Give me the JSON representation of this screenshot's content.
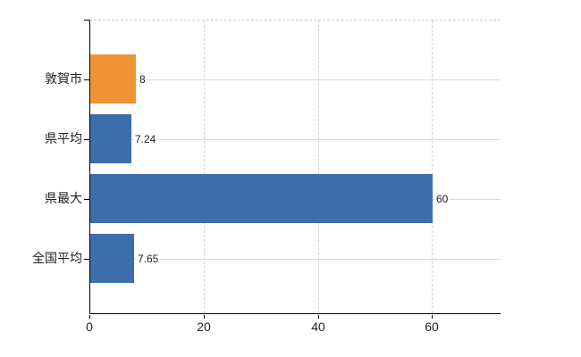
{
  "chart": {
    "background_color": "#ffffff",
    "axis_color": "#000000",
    "horizontal_grid_color": "#d4ddd4",
    "vertical_grid_color": "#d8d2d8",
    "plot_top_border_color": "#c9c9c9",
    "text_color": "#222222"
  },
  "chart_data": {
    "type": "bar",
    "orientation": "horizontal",
    "title": "",
    "xlabel": "",
    "ylabel": "",
    "categories": [
      "敦賀市",
      "県平均",
      "県最大",
      "全国平均"
    ],
    "values": [
      8,
      7.24,
      60,
      7.65
    ],
    "value_labels": [
      "8",
      "7.24",
      "60",
      "7.65"
    ],
    "bar_colors": [
      "#ee9434",
      "#3d6eac",
      "#3d6eac",
      "#3d6eac"
    ],
    "accent_orange": "#ee9434",
    "accent_blue": "#3d6eac",
    "x_ticks": [
      0,
      20,
      40,
      60
    ],
    "x_tick_labels": [
      "0",
      "20",
      "40",
      "60"
    ],
    "xlim": [
      0,
      72
    ],
    "grid": true,
    "legend_position": "none"
  }
}
